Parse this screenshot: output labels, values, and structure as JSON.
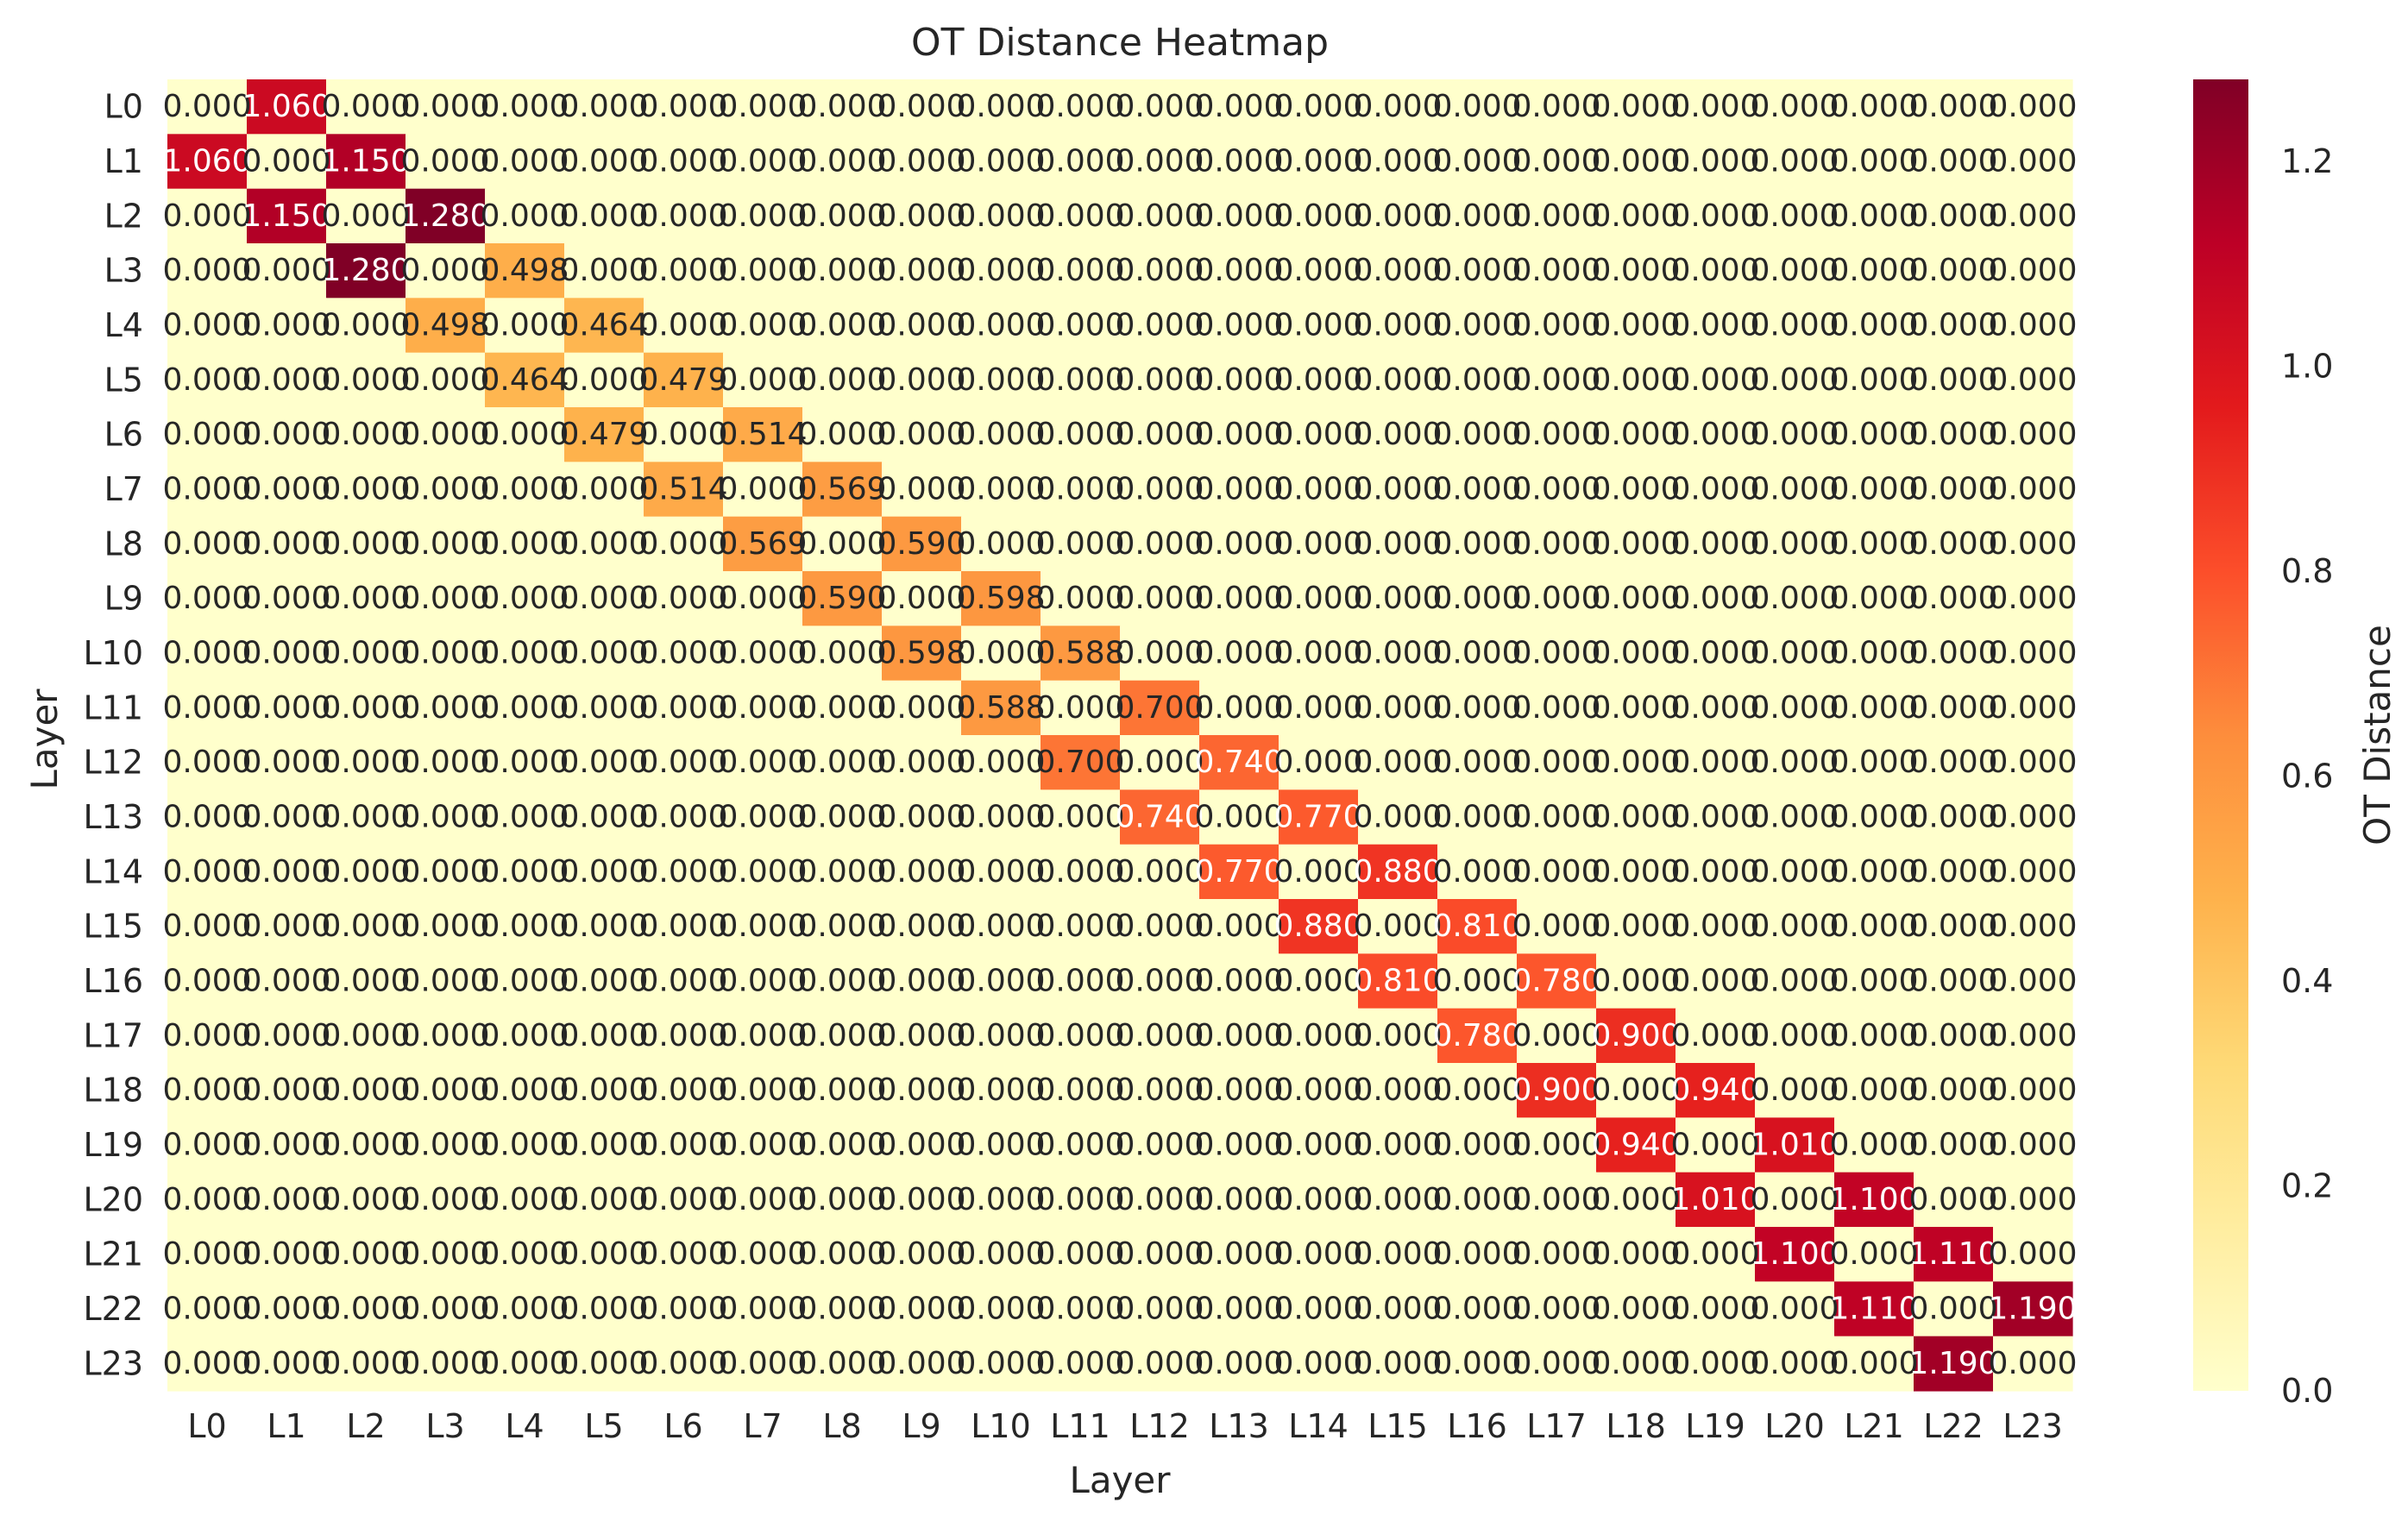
{
  "chart_data": {
    "type": "heatmap",
    "title": "OT Distance Heatmap",
    "xlabel": "Layer",
    "ylabel": "Layer",
    "colorbar_label": "OT Distance",
    "colormap": "YlOrRd",
    "vmin": 0.0,
    "vmax": 1.28,
    "colorbar_ticks": [
      "0.0",
      "0.2",
      "0.4",
      "0.6",
      "0.8",
      "1.0",
      "1.2"
    ],
    "grid": false,
    "x_labels": [
      "L0",
      "L1",
      "L2",
      "L3",
      "L4",
      "L5",
      "L6",
      "L7",
      "L8",
      "L9",
      "L10",
      "L11",
      "L12",
      "L13",
      "L14",
      "L15",
      "L16",
      "L17",
      "L18",
      "L19",
      "L20",
      "L21",
      "L22",
      "L23"
    ],
    "y_labels": [
      "L0",
      "L1",
      "L2",
      "L3",
      "L4",
      "L5",
      "L6",
      "L7",
      "L8",
      "L9",
      "L10",
      "L11",
      "L12",
      "L13",
      "L14",
      "L15",
      "L16",
      "L17",
      "L18",
      "L19",
      "L20",
      "L21",
      "L22",
      "L23"
    ],
    "value_format": "3 decimals",
    "values": [
      [
        0,
        1.06,
        0,
        0,
        0,
        0,
        0,
        0,
        0,
        0,
        0,
        0,
        0,
        0,
        0,
        0,
        0,
        0,
        0,
        0,
        0,
        0,
        0,
        0
      ],
      [
        1.06,
        0,
        1.15,
        0,
        0,
        0,
        0,
        0,
        0,
        0,
        0,
        0,
        0,
        0,
        0,
        0,
        0,
        0,
        0,
        0,
        0,
        0,
        0,
        0
      ],
      [
        0,
        1.15,
        0,
        1.28,
        0,
        0,
        0,
        0,
        0,
        0,
        0,
        0,
        0,
        0,
        0,
        0,
        0,
        0,
        0,
        0,
        0,
        0,
        0,
        0
      ],
      [
        0,
        0,
        1.28,
        0,
        0.498,
        0,
        0,
        0,
        0,
        0,
        0,
        0,
        0,
        0,
        0,
        0,
        0,
        0,
        0,
        0,
        0,
        0,
        0,
        0
      ],
      [
        0,
        0,
        0,
        0.498,
        0,
        0.464,
        0,
        0,
        0,
        0,
        0,
        0,
        0,
        0,
        0,
        0,
        0,
        0,
        0,
        0,
        0,
        0,
        0,
        0
      ],
      [
        0,
        0,
        0,
        0,
        0.464,
        0,
        0.479,
        0,
        0,
        0,
        0,
        0,
        0,
        0,
        0,
        0,
        0,
        0,
        0,
        0,
        0,
        0,
        0,
        0
      ],
      [
        0,
        0,
        0,
        0,
        0,
        0.479,
        0,
        0.514,
        0,
        0,
        0,
        0,
        0,
        0,
        0,
        0,
        0,
        0,
        0,
        0,
        0,
        0,
        0,
        0
      ],
      [
        0,
        0,
        0,
        0,
        0,
        0,
        0.514,
        0,
        0.569,
        0,
        0,
        0,
        0,
        0,
        0,
        0,
        0,
        0,
        0,
        0,
        0,
        0,
        0,
        0
      ],
      [
        0,
        0,
        0,
        0,
        0,
        0,
        0,
        0.569,
        0,
        0.59,
        0,
        0,
        0,
        0,
        0,
        0,
        0,
        0,
        0,
        0,
        0,
        0,
        0,
        0
      ],
      [
        0,
        0,
        0,
        0,
        0,
        0,
        0,
        0,
        0.59,
        0,
        0.598,
        0,
        0,
        0,
        0,
        0,
        0,
        0,
        0,
        0,
        0,
        0,
        0,
        0
      ],
      [
        0,
        0,
        0,
        0,
        0,
        0,
        0,
        0,
        0,
        0.598,
        0,
        0.588,
        0,
        0,
        0,
        0,
        0,
        0,
        0,
        0,
        0,
        0,
        0,
        0
      ],
      [
        0,
        0,
        0,
        0,
        0,
        0,
        0,
        0,
        0,
        0,
        0.588,
        0,
        0.7,
        0,
        0,
        0,
        0,
        0,
        0,
        0,
        0,
        0,
        0,
        0
      ],
      [
        0,
        0,
        0,
        0,
        0,
        0,
        0,
        0,
        0,
        0,
        0,
        0.7,
        0,
        0.74,
        0,
        0,
        0,
        0,
        0,
        0,
        0,
        0,
        0,
        0
      ],
      [
        0,
        0,
        0,
        0,
        0,
        0,
        0,
        0,
        0,
        0,
        0,
        0,
        0.74,
        0,
        0.77,
        0,
        0,
        0,
        0,
        0,
        0,
        0,
        0,
        0
      ],
      [
        0,
        0,
        0,
        0,
        0,
        0,
        0,
        0,
        0,
        0,
        0,
        0,
        0,
        0.77,
        0,
        0.88,
        0,
        0,
        0,
        0,
        0,
        0,
        0,
        0
      ],
      [
        0,
        0,
        0,
        0,
        0,
        0,
        0,
        0,
        0,
        0,
        0,
        0,
        0,
        0,
        0.88,
        0,
        0.81,
        0,
        0,
        0,
        0,
        0,
        0,
        0
      ],
      [
        0,
        0,
        0,
        0,
        0,
        0,
        0,
        0,
        0,
        0,
        0,
        0,
        0,
        0,
        0,
        0.81,
        0,
        0.78,
        0,
        0,
        0,
        0,
        0,
        0
      ],
      [
        0,
        0,
        0,
        0,
        0,
        0,
        0,
        0,
        0,
        0,
        0,
        0,
        0,
        0,
        0,
        0,
        0.78,
        0,
        0.9,
        0,
        0,
        0,
        0,
        0
      ],
      [
        0,
        0,
        0,
        0,
        0,
        0,
        0,
        0,
        0,
        0,
        0,
        0,
        0,
        0,
        0,
        0,
        0,
        0.9,
        0,
        0.94,
        0,
        0,
        0,
        0
      ],
      [
        0,
        0,
        0,
        0,
        0,
        0,
        0,
        0,
        0,
        0,
        0,
        0,
        0,
        0,
        0,
        0,
        0,
        0,
        0.94,
        0,
        1.01,
        0,
        0,
        0
      ],
      [
        0,
        0,
        0,
        0,
        0,
        0,
        0,
        0,
        0,
        0,
        0,
        0,
        0,
        0,
        0,
        0,
        0,
        0,
        0,
        1.01,
        0,
        1.1,
        0,
        0
      ],
      [
        0,
        0,
        0,
        0,
        0,
        0,
        0,
        0,
        0,
        0,
        0,
        0,
        0,
        0,
        0,
        0,
        0,
        0,
        0,
        0,
        1.1,
        0,
        1.11,
        0
      ],
      [
        0,
        0,
        0,
        0,
        0,
        0,
        0,
        0,
        0,
        0,
        0,
        0,
        0,
        0,
        0,
        0,
        0,
        0,
        0,
        0,
        0,
        1.11,
        0,
        1.19
      ],
      [
        0,
        0,
        0,
        0,
        0,
        0,
        0,
        0,
        0,
        0,
        0,
        0,
        0,
        0,
        0,
        0,
        0,
        0,
        0,
        0,
        0,
        0,
        1.19,
        0
      ]
    ]
  }
}
